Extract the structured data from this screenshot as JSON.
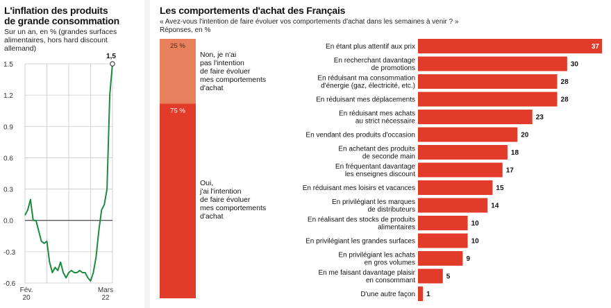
{
  "colors": {
    "red": "#e23b2a",
    "orange": "#e8805e",
    "line": "#1c8a3c",
    "grid": "#c8c8c8"
  },
  "left_chart": {
    "title": "L'inflation des produits\nde grande consommation",
    "subtitle": "Sur un an, en % (grandes surfaces\nalimentaires, hors hard discount\nallemand)"
  },
  "right_chart": {
    "title": "Les comportements d'achat des Français",
    "question": "« Avez-vous l'intention de faire évoluer vos comportements d'achat dans les semaines à venir ? »",
    "unit": "Réponses, en %"
  },
  "chart_data": [
    {
      "type": "line",
      "title": "L'inflation des produits de grande consommation",
      "ylim": [
        -0.6,
        1.5
      ],
      "yticks": [
        "1.5",
        "1.2",
        "0.9",
        "0.6",
        "0.3",
        "0.0",
        "-0.3",
        "-0.6"
      ],
      "ytick_values": [
        1.5,
        1.2,
        0.9,
        0.6,
        0.3,
        0.0,
        -0.3,
        -0.6
      ],
      "x_start_label": "Fév.\n20",
      "x_end_label": "Mars\n22",
      "end_label": "1,5",
      "values": [
        0.05,
        0.1,
        0.2,
        0.0,
        0.0,
        -0.1,
        -0.2,
        -0.22,
        -0.2,
        -0.4,
        -0.5,
        -0.45,
        -0.48,
        -0.4,
        -0.5,
        -0.55,
        -0.5,
        -0.48,
        -0.5,
        -0.5,
        -0.48,
        -0.5,
        -0.5,
        -0.55,
        -0.58,
        -0.5,
        -0.35,
        -0.1,
        0.1,
        0.15,
        0.3,
        1.2,
        1.5
      ]
    },
    {
      "type": "bar",
      "title": "Les comportements d'achat des Français",
      "stacked_total": [
        {
          "label": "25 %",
          "value": 25,
          "text": "Non, je n'ai\npas l'intention\nde faire évoluer\nmes comportements\nd'achat"
        },
        {
          "label": "75 %",
          "value": 75,
          "text": "Oui,\nj'ai l'intention\nde faire évoluer\nmes comportements\nd'achat"
        }
      ],
      "categories": [
        "En étant plus attentif aux prix",
        "En recherchant davantage\nde promotions",
        "En réduisant ma consommation\nd'énergie (gaz, électricité, etc.)",
        "En réduisant mes déplacements",
        "En réduisant mes achats\nau strict nécessaire",
        "En vendant des produits d'occasion",
        "En achetant des produits\nde seconde main",
        "En fréquentant davantage\nles enseignes discount",
        "En réduisant mes loisirs et vacances",
        "En privilégiant les marques\nde distributeurs",
        "En réalisant des stocks de produits\nalimentaires",
        "En privilégiant les grandes surfaces",
        "En privilégiant les achats\nen gros volumes",
        "En me faisant davantage plaisir\nen consommant",
        "D'une autre façon"
      ],
      "values": [
        37,
        30,
        28,
        28,
        23,
        20,
        18,
        17,
        15,
        14,
        10,
        10,
        9,
        5,
        1
      ],
      "xlim": [
        0,
        37
      ]
    }
  ]
}
